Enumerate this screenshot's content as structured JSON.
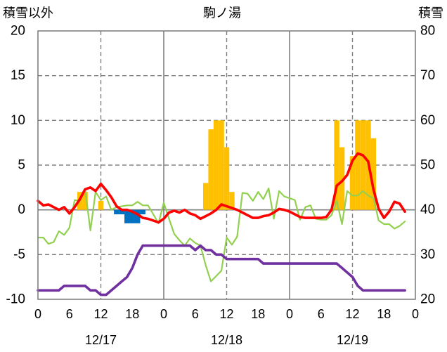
{
  "chart_data": {
    "type": "line",
    "title": "駒ノ湯",
    "ylabel": "積雪以外",
    "y2label": "積雪",
    "ylim": [
      -10,
      20
    ],
    "y2lim": [
      20,
      80
    ],
    "yticks": [
      20,
      15,
      10,
      5,
      0,
      -5,
      -10
    ],
    "y2ticks": [
      80,
      70,
      60,
      50,
      40,
      30,
      20
    ],
    "xtick_labels": [
      "0",
      "6",
      "12",
      "18",
      "0",
      "6",
      "12",
      "18",
      "0",
      "6",
      "12",
      "18",
      "0"
    ],
    "dates": [
      "12/17",
      "12/18",
      "12/19"
    ],
    "hours": [
      0,
      1,
      2,
      3,
      4,
      5,
      6,
      7,
      8,
      9,
      10,
      11,
      12,
      13,
      14,
      15,
      16,
      17,
      18,
      19,
      20,
      21,
      22,
      23
    ],
    "grid": true,
    "series": [
      {
        "type": "bar",
        "axis": "left",
        "color": "#FFC000",
        "points": [
          {
            "date": "12/17",
            "hour": 8,
            "value": 2
          },
          {
            "date": "12/17",
            "hour": 9,
            "value": 2
          },
          {
            "date": "12/17",
            "hour": 12,
            "value": 1
          },
          {
            "date": "12/18",
            "hour": 8,
            "value": 3
          },
          {
            "date": "12/18",
            "hour": 9,
            "value": 9
          },
          {
            "date": "12/18",
            "hour": 10,
            "value": 10
          },
          {
            "date": "12/18",
            "hour": 11,
            "value": 10
          },
          {
            "date": "12/18",
            "hour": 12,
            "value": 7
          },
          {
            "date": "12/18",
            "hour": 13,
            "value": 2
          },
          {
            "date": "12/19",
            "hour": 9,
            "value": 10
          },
          {
            "date": "12/19",
            "hour": 10,
            "value": 7
          },
          {
            "date": "12/19",
            "hour": 12,
            "value": 6
          },
          {
            "date": "12/19",
            "hour": 13,
            "value": 10
          },
          {
            "date": "12/19",
            "hour": 14,
            "value": 10
          },
          {
            "date": "12/19",
            "hour": 15,
            "value": 10
          },
          {
            "date": "12/19",
            "hour": 16,
            "value": 8
          }
        ]
      },
      {
        "type": "bar",
        "axis": "left",
        "color": "#0070C0",
        "points": [
          {
            "date": "12/17",
            "hour": 15,
            "value": -0.5
          },
          {
            "date": "12/17",
            "hour": 16,
            "value": -0.5
          },
          {
            "date": "12/17",
            "hour": 17,
            "value": -1.5
          },
          {
            "date": "12/17",
            "hour": 18,
            "value": -1.5
          },
          {
            "date": "12/17",
            "hour": 19,
            "value": -1.5
          },
          {
            "date": "12/17",
            "hour": 20,
            "value": -0.5
          }
        ]
      },
      {
        "type": "line",
        "axis": "left",
        "color": "#92D050",
        "values": {
          "12/17": [
            -3.1,
            -3.1,
            -3.8,
            -3.6,
            -2.4,
            -2.8,
            -2.0,
            1.1,
            1.0,
            2.3,
            -2.3,
            2.0,
            1.1,
            1.5,
            0.0,
            0.3,
            0.4,
            0.5,
            0.5,
            0.9,
            0.5,
            0.5,
            -0.5,
            -1.5
          ],
          "12/18": [
            0.8,
            -1.0,
            -2.7,
            -3.4,
            -4.0,
            -3.2,
            -3.7,
            -4.0,
            -6.2,
            -8.0,
            -7.4,
            -6.8,
            -3.1,
            -3.9,
            -3.0,
            1.9,
            1.8,
            1.0,
            2.0,
            1.2,
            2.4,
            -1.0,
            2.1,
            1.5
          ],
          "12/19": [
            1.3,
            1.1,
            -1.1,
            0.3,
            0.5,
            -1.0,
            -1.1,
            -1.1,
            -0.6,
            1.0,
            -1.6,
            2.1,
            1.6,
            1.6,
            2.1,
            1.6,
            1.3,
            -1.2,
            -1.6,
            -1.6,
            -2.1,
            -1.8,
            -1.3,
            null
          ]
        }
      },
      {
        "type": "line",
        "axis": "right",
        "color": "#7030A0",
        "values": {
          "12/17": [
            22,
            22,
            22,
            22,
            22,
            23,
            23,
            23,
            23,
            23,
            22,
            22,
            21,
            21,
            22,
            23,
            24,
            25,
            27,
            30,
            32,
            32,
            32,
            32
          ],
          "12/18": [
            32,
            32,
            32,
            32,
            32,
            32,
            31,
            32,
            31,
            31,
            30,
            30,
            29,
            29,
            29,
            29,
            29,
            29,
            29,
            28,
            28,
            28,
            28,
            28
          ],
          "12/19": [
            28,
            28,
            28,
            28,
            28,
            28,
            28,
            28,
            28,
            28,
            27,
            26,
            25,
            23,
            22,
            22,
            22,
            22,
            22,
            22,
            22,
            22,
            22,
            null
          ]
        }
      },
      {
        "type": "line",
        "axis": "left",
        "color": "#FF0000",
        "values": {
          "12/17": [
            1.0,
            0.5,
            0.6,
            0.3,
            0.0,
            0.3,
            -0.4,
            0.3,
            1.2,
            2.3,
            2.5,
            2.1,
            2.9,
            2.2,
            1.4,
            0.4,
            0.0,
            0.0,
            -0.2,
            -0.5,
            -0.9,
            -1.0,
            -1.2,
            -1.4
          ],
          "12/18": [
            -1.0,
            -0.3,
            -0.1,
            -0.3,
            0.0,
            -0.4,
            -0.6,
            -1.0,
            -0.7,
            -0.4,
            0.0,
            0.6,
            0.4,
            0.2,
            0.0,
            -0.3,
            -0.6,
            -0.9,
            -0.9,
            -0.7,
            -0.6,
            -0.3,
            0.1,
            0.0
          ],
          "12/19": [
            -0.2,
            -0.5,
            -0.8,
            -0.9,
            -0.9,
            -0.9,
            -0.9,
            -0.8,
            0.0,
            2.7,
            3.2,
            3.9,
            5.5,
            6.3,
            6.1,
            5.4,
            2.3,
            0.1,
            -0.9,
            -0.2,
            0.9,
            0.7,
            -0.2,
            null
          ]
        }
      }
    ]
  }
}
